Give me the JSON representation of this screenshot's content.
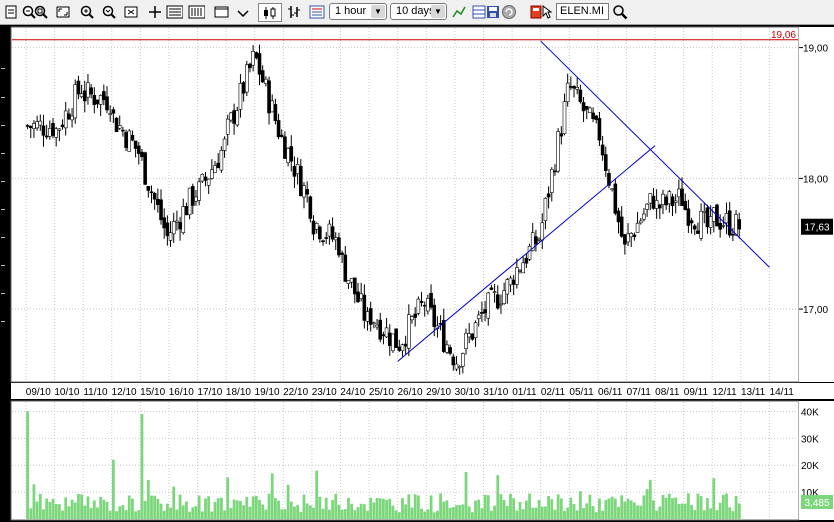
{
  "toolbar": {
    "interval_label": "1 hour",
    "range_label": "10 days",
    "ticker": "ELEN.MI",
    "icons": [
      "print-icon",
      "zoom-out-icon",
      "zoom-box-icon",
      "zoom-in-icon",
      "zoom-reset-icon",
      "crosshair-icon",
      "bars-view-icon",
      "columns-view-icon",
      "window-icon",
      "candles-icon",
      "ohlc-icon",
      "indicator-list-icon",
      "interval-select",
      "range-select",
      "line-style-icon",
      "data-table-icon",
      "save-icon",
      "refresh-icon",
      "tag-icon",
      "ticker-input",
      "search-icon"
    ]
  },
  "chart_data": [
    {
      "type": "candlestick",
      "title": "",
      "xlabel": "",
      "ylabel": "",
      "ylim": [
        16.45,
        19.15
      ],
      "y_ticks": [
        "19,00",
        "18,00",
        "17,00"
      ],
      "y_tick_values": [
        19.0,
        18.0,
        17.0
      ],
      "x_tick_labels": [
        "09/10",
        "10/10",
        "11/10",
        "12/10",
        "15/10",
        "16/10",
        "17/10",
        "18/10",
        "19/10",
        "22/10",
        "23/10",
        "24/10",
        "25/10",
        "26/10",
        "29/10",
        "30/10",
        "31/10",
        "01/11",
        "02/11",
        "05/11",
        "06/11",
        "07/11",
        "08/11",
        "09/11",
        "12/11",
        "13/11",
        "14/11"
      ],
      "grid": true,
      "reference_line": {
        "value": 19.06,
        "label": "19,06",
        "color": "#cc0000"
      },
      "last_price": {
        "value": 17.63,
        "label": "17,63"
      },
      "series": [
        {
          "kind": "close_path",
          "close_by_day": [
            18.4,
            18.7,
            18.6,
            18.2,
            17.55,
            17.9,
            18.25,
            18.9,
            18.3,
            17.8,
            17.5,
            16.9,
            16.75,
            17.05,
            16.65,
            16.95,
            17.2,
            17.55,
            18.65,
            18.35,
            17.45,
            17.85,
            17.85,
            17.6,
            17.63
          ]
        },
        {
          "kind": "trendline",
          "from": [
            "02/11",
            19.05
          ],
          "to": [
            "14/11",
            17.32
          ],
          "color": "#0000cc"
        },
        {
          "kind": "trendline",
          "from": [
            "26/10",
            16.6
          ],
          "to": [
            "08/11",
            18.25
          ],
          "color": "#0000cc"
        }
      ]
    },
    {
      "type": "bar",
      "title": "",
      "ylim": [
        0,
        42000
      ],
      "y_ticks": [
        "40K",
        "30K",
        "20K",
        "10K"
      ],
      "y_tick_values": [
        40000,
        30000,
        20000,
        10000
      ],
      "last_value_label": "3,485",
      "grid": true,
      "bar_color": "#7cd77c",
      "peaks": [
        {
          "x": "09/10",
          "value": 40000
        },
        {
          "x": "15/10",
          "value": 39000
        },
        {
          "x": "12/10",
          "value": 22000
        }
      ]
    }
  ]
}
